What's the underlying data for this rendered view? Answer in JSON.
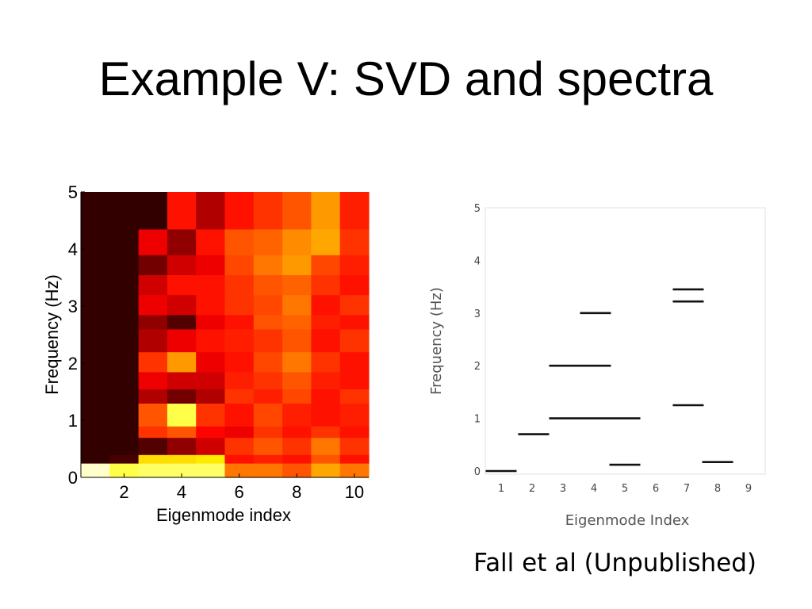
{
  "slide": {
    "title": "Example V:  SVD and spectra",
    "citation": "Fall et al (Unpublished)"
  },
  "chart_data": [
    {
      "type": "heatmap",
      "xlabel": "Eigenmode index",
      "ylabel": "Frequency (Hz)",
      "xlim": [
        1,
        10
      ],
      "ylim": [
        0,
        5
      ],
      "x_ticks": [
        "2",
        "4",
        "6",
        "8",
        "10"
      ],
      "y_ticks": [
        "0",
        "1",
        "2",
        "3",
        "4",
        "5"
      ],
      "colormap": "hot",
      "row_edges": [
        0,
        0.25,
        0.4,
        0.7,
        0.9,
        1.3,
        1.55,
        1.85,
        2.2,
        2.6,
        2.85,
        3.2,
        3.55,
        3.9,
        4.35,
        5
      ],
      "intensity": [
        [
          0.95,
          0.82,
          0.85,
          0.85,
          0.85,
          0.55,
          0.55,
          0.5,
          0.62,
          0.55
        ],
        [
          0.05,
          0.08,
          0.7,
          0.7,
          0.72,
          0.4,
          0.42,
          0.4,
          0.5,
          0.4
        ],
        [
          0.05,
          0.05,
          0.1,
          0.2,
          0.3,
          0.45,
          0.5,
          0.45,
          0.55,
          0.45
        ],
        [
          0.05,
          0.05,
          0.45,
          0.5,
          0.38,
          0.35,
          0.45,
          0.4,
          0.45,
          0.4
        ],
        [
          0.05,
          0.05,
          0.5,
          0.82,
          0.45,
          0.4,
          0.48,
          0.42,
          0.4,
          0.42
        ],
        [
          0.05,
          0.05,
          0.25,
          0.15,
          0.25,
          0.45,
          0.42,
          0.48,
          0.4,
          0.45
        ],
        [
          0.05,
          0.05,
          0.35,
          0.3,
          0.3,
          0.42,
          0.45,
          0.5,
          0.42,
          0.4
        ],
        [
          0.05,
          0.05,
          0.45,
          0.6,
          0.35,
          0.4,
          0.48,
          0.55,
          0.45,
          0.4
        ],
        [
          0.05,
          0.05,
          0.25,
          0.35,
          0.4,
          0.42,
          0.45,
          0.5,
          0.4,
          0.45
        ],
        [
          0.05,
          0.05,
          0.2,
          0.1,
          0.35,
          0.4,
          0.5,
          0.52,
          0.42,
          0.4
        ],
        [
          0.05,
          0.05,
          0.35,
          0.3,
          0.4,
          0.45,
          0.48,
          0.55,
          0.4,
          0.45
        ],
        [
          0.05,
          0.05,
          0.3,
          0.4,
          0.4,
          0.45,
          0.5,
          0.52,
          0.45,
          0.4
        ],
        [
          0.05,
          0.05,
          0.15,
          0.3,
          0.35,
          0.48,
          0.55,
          0.6,
          0.48,
          0.42
        ],
        [
          0.05,
          0.05,
          0.35,
          0.2,
          0.4,
          0.5,
          0.52,
          0.58,
          0.62,
          0.45
        ],
        [
          0.05,
          0.05,
          0.05,
          0.4,
          0.25,
          0.4,
          0.45,
          0.5,
          0.6,
          0.42
        ]
      ]
    },
    {
      "type": "line",
      "subtype": "horizontal segments",
      "xlabel": "Eigenmode Index",
      "ylabel": "Frequency (Hz)",
      "xlim": [
        0.5,
        9.5
      ],
      "ylim": [
        0,
        5
      ],
      "x_ticks": [
        "1",
        "2",
        "3",
        "4",
        "5",
        "6",
        "7",
        "8",
        "9"
      ],
      "y_ticks": [
        "0",
        "1",
        "2",
        "3",
        "4",
        "5"
      ],
      "segments": [
        {
          "x0": 0.5,
          "x1": 1.5,
          "y": 0.0
        },
        {
          "x0": 1.55,
          "x1": 2.55,
          "y": 0.7
        },
        {
          "x0": 2.55,
          "x1": 4.55,
          "y": 2.0
        },
        {
          "x0": 2.55,
          "x1": 5.5,
          "y": 1.0
        },
        {
          "x0": 3.55,
          "x1": 4.55,
          "y": 3.0
        },
        {
          "x0": 4.5,
          "x1": 5.5,
          "y": 0.12
        },
        {
          "x0": 6.55,
          "x1": 7.55,
          "y": 3.45
        },
        {
          "x0": 6.55,
          "x1": 7.55,
          "y": 3.22
        },
        {
          "x0": 6.55,
          "x1": 7.55,
          "y": 1.25
        },
        {
          "x0": 7.5,
          "x1": 8.5,
          "y": 0.17
        }
      ]
    }
  ]
}
